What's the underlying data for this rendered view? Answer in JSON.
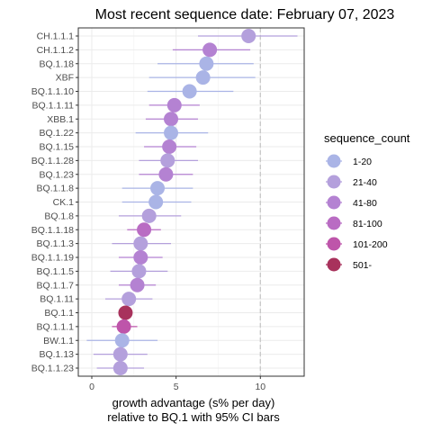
{
  "chart_data": {
    "type": "scatter",
    "title": "Most recent sequence date: February 07, 2023",
    "xlabel_line1": "growth advantage (s% per day)",
    "xlabel_line2": "relative to  BQ.1  with 95% CI bars",
    "xlim": [
      -0.8,
      12.6
    ],
    "xticks": [
      0,
      5,
      10
    ],
    "xtick_labels": [
      "0",
      "5",
      "10"
    ],
    "reference_line_x": 10,
    "grid": true,
    "legend": {
      "title": "sequence_count",
      "position": "right",
      "entries": [
        {
          "label": "1-20",
          "color": "#aab4e6"
        },
        {
          "label": "21-40",
          "color": "#b4a0dc"
        },
        {
          "label": "41-80",
          "color": "#b482d2"
        },
        {
          "label": "81-100",
          "color": "#b96cc3"
        },
        {
          "label": "101-200",
          "color": "#be55aa"
        },
        {
          "label": "501-",
          "color": "#a8325c"
        }
      ]
    },
    "points": [
      {
        "name": "CH.1.1.1",
        "x": 9.3,
        "lo": 6.3,
        "hi": 12.2,
        "count_bin": "21-40"
      },
      {
        "name": "CH.1.1.2",
        "x": 7.0,
        "lo": 4.8,
        "hi": 9.4,
        "count_bin": "41-80"
      },
      {
        "name": "BQ.1.18",
        "x": 6.8,
        "lo": 3.9,
        "hi": 9.6,
        "count_bin": "1-20"
      },
      {
        "name": "XBF",
        "x": 6.6,
        "lo": 3.4,
        "hi": 9.7,
        "count_bin": "1-20"
      },
      {
        "name": "BQ.1.1.10",
        "x": 5.8,
        "lo": 3.3,
        "hi": 8.4,
        "count_bin": "1-20"
      },
      {
        "name": "BQ.1.1.11",
        "x": 4.9,
        "lo": 3.4,
        "hi": 6.4,
        "count_bin": "41-80"
      },
      {
        "name": "XBB.1",
        "x": 4.7,
        "lo": 3.2,
        "hi": 6.3,
        "count_bin": "41-80"
      },
      {
        "name": "BQ.1.22",
        "x": 4.7,
        "lo": 2.6,
        "hi": 6.9,
        "count_bin": "1-20"
      },
      {
        "name": "BQ.1.15",
        "x": 4.6,
        "lo": 3.1,
        "hi": 6.2,
        "count_bin": "41-80"
      },
      {
        "name": "BQ.1.1.28",
        "x": 4.5,
        "lo": 2.8,
        "hi": 6.3,
        "count_bin": "21-40"
      },
      {
        "name": "BQ.1.23",
        "x": 4.4,
        "lo": 2.8,
        "hi": 6.0,
        "count_bin": "41-80"
      },
      {
        "name": "BQ.1.1.8",
        "x": 3.9,
        "lo": 1.8,
        "hi": 6.0,
        "count_bin": "1-20"
      },
      {
        "name": "CK.1",
        "x": 3.8,
        "lo": 1.8,
        "hi": 5.9,
        "count_bin": "1-20"
      },
      {
        "name": "BQ.1.8",
        "x": 3.4,
        "lo": 1.6,
        "hi": 5.3,
        "count_bin": "21-40"
      },
      {
        "name": "BQ.1.1.18",
        "x": 3.1,
        "lo": 2.1,
        "hi": 4.1,
        "count_bin": "81-100"
      },
      {
        "name": "BQ.1.1.3",
        "x": 2.9,
        "lo": 1.2,
        "hi": 4.7,
        "count_bin": "21-40"
      },
      {
        "name": "BQ.1.1.19",
        "x": 2.9,
        "lo": 1.6,
        "hi": 4.2,
        "count_bin": "41-80"
      },
      {
        "name": "BQ.1.1.5",
        "x": 2.8,
        "lo": 1.1,
        "hi": 4.5,
        "count_bin": "21-40"
      },
      {
        "name": "BQ.1.1.7",
        "x": 2.7,
        "lo": 1.6,
        "hi": 3.8,
        "count_bin": "41-80"
      },
      {
        "name": "BQ.1.11",
        "x": 2.2,
        "lo": 0.8,
        "hi": 3.6,
        "count_bin": "21-40"
      },
      {
        "name": "BQ.1.1",
        "x": 2.0,
        "lo": 1.7,
        "hi": 2.3,
        "count_bin": "501-"
      },
      {
        "name": "BQ.1.1.1",
        "x": 1.9,
        "lo": 1.2,
        "hi": 2.7,
        "count_bin": "101-200"
      },
      {
        "name": "BW.1.1",
        "x": 1.8,
        "lo": -0.3,
        "hi": 3.9,
        "count_bin": "1-20"
      },
      {
        "name": "BQ.1.13",
        "x": 1.7,
        "lo": 0.1,
        "hi": 3.3,
        "count_bin": "21-40"
      },
      {
        "name": "BQ.1.1.23",
        "x": 1.7,
        "lo": 0.3,
        "hi": 3.1,
        "count_bin": "21-40"
      }
    ]
  }
}
